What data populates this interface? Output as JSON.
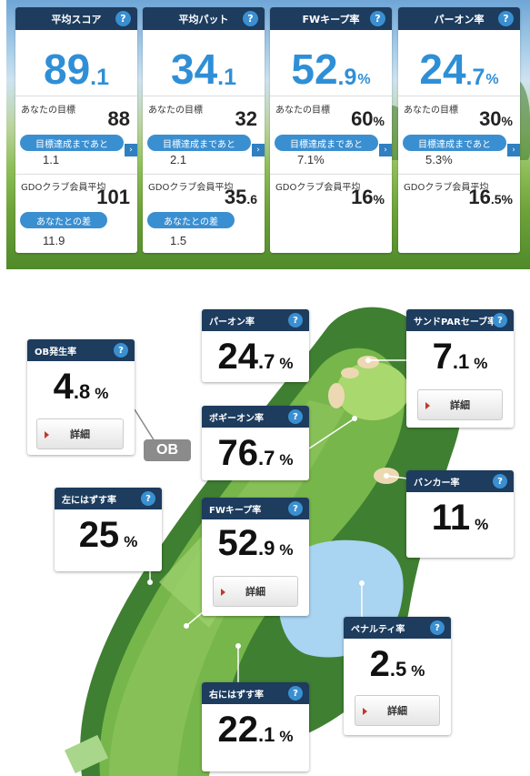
{
  "stat_cards": [
    {
      "title": "平均スコア",
      "main_int": "89",
      "main_dec": ".1",
      "main_unit": "",
      "goal_label": "あなたの目標",
      "goal_value": "88",
      "goal_unit": "",
      "remaining_label": "目標達成まであと",
      "remaining_value": "1.1",
      "gdo_label": "GDOクラブ会員平均",
      "gdo_value": "101",
      "gdo_dec": "",
      "gdo_unit": "",
      "diff_label": "あなたとの差",
      "diff_value": "11.9"
    },
    {
      "title": "平均パット",
      "main_int": "34",
      "main_dec": ".1",
      "main_unit": "",
      "goal_label": "あなたの目標",
      "goal_value": "32",
      "goal_unit": "",
      "remaining_label": "目標達成まであと",
      "remaining_value": "2.1",
      "gdo_label": "GDOクラブ会員平均",
      "gdo_value": "35",
      "gdo_dec": ".6",
      "gdo_unit": "",
      "diff_label": "あなたとの差",
      "diff_value": "1.5"
    },
    {
      "title": "FWキープ率",
      "main_int": "52",
      "main_dec": ".9",
      "main_unit": "%",
      "goal_label": "あなたの目標",
      "goal_value": "60",
      "goal_unit": "%",
      "remaining_label": "目標達成まであと",
      "remaining_value": "7.1%",
      "gdo_label": "GDOクラブ会員平均",
      "gdo_value": "16",
      "gdo_dec": "",
      "gdo_unit": "%",
      "diff_label": "",
      "diff_value": ""
    },
    {
      "title": "パーオン率",
      "main_int": "24",
      "main_dec": ".7",
      "main_unit": "%",
      "goal_label": "あなたの目標",
      "goal_value": "30",
      "goal_unit": "%",
      "remaining_label": "目標達成まであと",
      "remaining_value": "5.3%",
      "gdo_label": "GDOクラブ会員平均",
      "gdo_value": "16",
      "gdo_dec": ".5",
      "gdo_unit": "%",
      "diff_label": "",
      "diff_value": ""
    }
  ],
  "help_icon": "?",
  "arrow_icon": "›",
  "course": {
    "ob": {
      "title": "OB発生率",
      "int": "4",
      "dec": ".8",
      "unit": "%",
      "button": "詳細",
      "badge": "OB"
    },
    "par_on": {
      "title": "パーオン率",
      "int": "24",
      "dec": ".7",
      "unit": "%"
    },
    "sand_par": {
      "title": "サンドPARセーブ率",
      "int": "7",
      "dec": ".1",
      "unit": "%",
      "button": "詳細"
    },
    "bogey_on": {
      "title": "ボギーオン率",
      "int": "76",
      "dec": ".7",
      "unit": "%"
    },
    "left_miss": {
      "title": "左にはずす率",
      "int": "25",
      "dec": "",
      "unit": "%"
    },
    "fw_keep": {
      "title": "FWキープ率",
      "int": "52",
      "dec": ".9",
      "unit": "%",
      "button": "詳細"
    },
    "bunker": {
      "title": "バンカー率",
      "int": "11",
      "dec": "",
      "unit": "%"
    },
    "penalty": {
      "title": "ペナルティ率",
      "int": "2",
      "dec": ".5",
      "unit": "%",
      "button": "詳細"
    },
    "right_miss": {
      "title": "右にはずす率",
      "int": "22",
      "dec": ".1",
      "unit": "%"
    }
  }
}
